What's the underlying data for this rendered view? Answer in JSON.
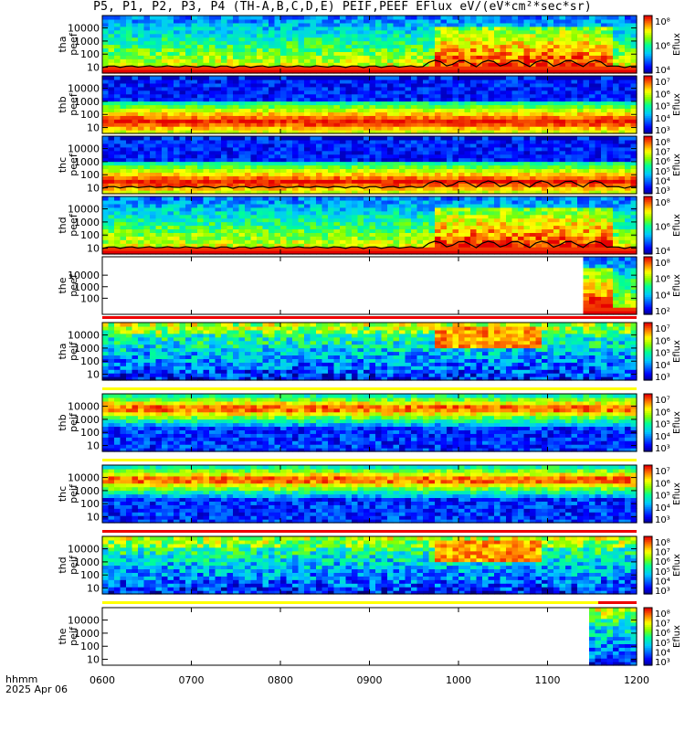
{
  "title": "P5, P1, P2, P3, P4 (TH-A,B,C,D,E) PEIF,PEEF EFlux eV/(eV*cm²*sec*sr)",
  "x_label_time": "hhmm",
  "x_label_date": "2025 Apr 06",
  "x_ticks": [
    "0600",
    "0700",
    "0800",
    "0900",
    "1000",
    "1100",
    "1200"
  ],
  "colorbar_unit": "Eflux",
  "chart_data": {
    "type": "heatmap",
    "x_range": [
      "0600",
      "1200"
    ],
    "panels": [
      {
        "id": "tha_peef",
        "ylabel": [
          "tha",
          "peef"
        ],
        "yticks": [
          "10",
          "100",
          "1000",
          "10000"
        ],
        "cbar": [
          "10⁴",
          "10⁶",
          "10⁸"
        ],
        "kind": "electron",
        "start": 0
      },
      {
        "id": "thb_peef",
        "ylabel": [
          "thb",
          "peef"
        ],
        "yticks": [
          "10",
          "100",
          "1000",
          "10000"
        ],
        "cbar": [
          "10³",
          "10⁴",
          "10⁵",
          "10⁶",
          "10⁷"
        ],
        "kind": "band_e",
        "start": 0
      },
      {
        "id": "thc_peef",
        "ylabel": [
          "thc",
          "peef"
        ],
        "yticks": [
          "10",
          "100",
          "1000",
          "10000"
        ],
        "cbar": [
          "10³",
          "10⁴",
          "10⁵",
          "10⁶",
          "10⁷",
          "10⁸"
        ],
        "kind": "band_e",
        "start": 0
      },
      {
        "id": "thd_peef",
        "ylabel": [
          "thd",
          "peef"
        ],
        "yticks": [
          "10",
          "100",
          "1000",
          "10000"
        ],
        "cbar": [
          "10⁴",
          "10⁶",
          "10⁸"
        ],
        "kind": "electron",
        "start": 0
      },
      {
        "id": "the_peef",
        "ylabel": [
          "the",
          "peef"
        ],
        "yticks": [
          "100",
          "1000",
          "10000"
        ],
        "cbar": [
          "10²",
          "10⁴",
          "10⁶",
          "10⁸"
        ],
        "kind": "partial_e",
        "start": 0.906
      },
      {
        "id": "tha_peif",
        "ylabel": [
          "tha",
          "peif"
        ],
        "yticks": [
          "10",
          "100",
          "1000",
          "10000"
        ],
        "cbar": [
          "10³",
          "10⁴",
          "10⁵",
          "10⁶",
          "10⁷"
        ],
        "kind": "ion",
        "start": 0
      },
      {
        "id": "thb_peif",
        "ylabel": [
          "thb",
          "peif"
        ],
        "yticks": [
          "10",
          "100",
          "1000",
          "10000"
        ],
        "cbar": [
          "10³",
          "10⁴",
          "10⁵",
          "10⁶",
          "10⁷"
        ],
        "kind": "band_i",
        "start": 0
      },
      {
        "id": "thc_peif",
        "ylabel": [
          "thc",
          "peif"
        ],
        "yticks": [
          "10",
          "100",
          "1000",
          "10000"
        ],
        "cbar": [
          "10³",
          "10⁴",
          "10⁵",
          "10⁶",
          "10⁷"
        ],
        "kind": "band_i",
        "start": 0
      },
      {
        "id": "thd_peif",
        "ylabel": [
          "thd",
          "peif"
        ],
        "yticks": [
          "10",
          "100",
          "1000",
          "10000"
        ],
        "cbar": [
          "10³",
          "10⁴",
          "10⁵",
          "10⁶",
          "10⁷",
          "10⁸"
        ],
        "kind": "ion",
        "start": 0
      },
      {
        "id": "the_peif",
        "ylabel": [
          "the",
          "peif"
        ],
        "yticks": [
          "10",
          "100",
          "1000",
          "10000"
        ],
        "cbar": [
          "10³",
          "10⁴",
          "10⁵",
          "10⁶",
          "10⁷",
          "10⁸"
        ],
        "kind": "partial_i",
        "start": 0.915
      }
    ]
  }
}
